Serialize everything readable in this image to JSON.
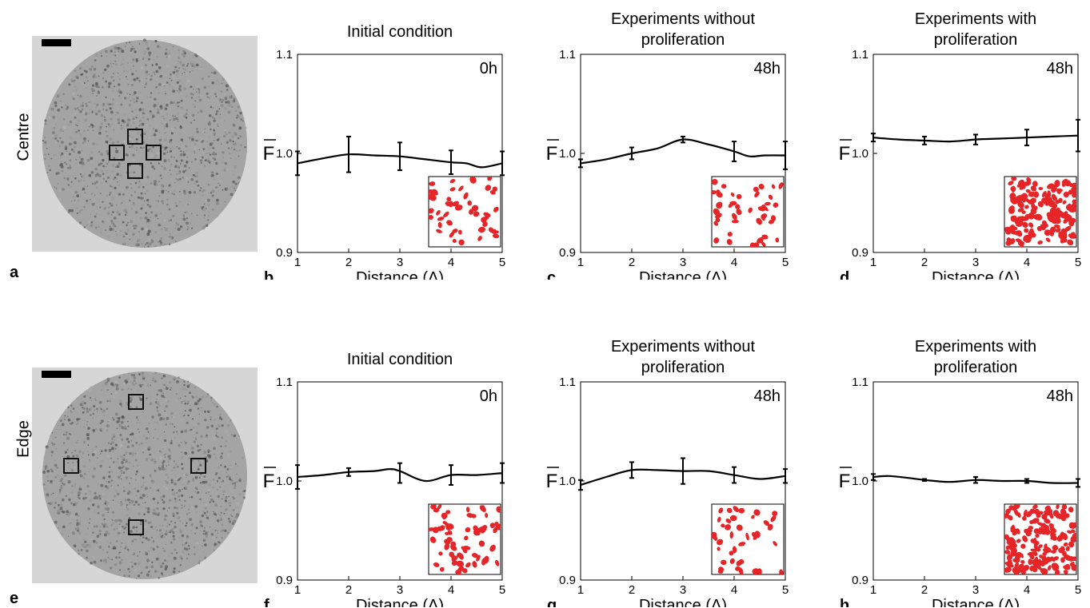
{
  "rows": [
    {
      "label": "Centre",
      "photo_letter": "a"
    },
    {
      "label": "Edge",
      "photo_letter": "e"
    }
  ],
  "axis_common": {
    "xlabel": "Distance (Δ)",
    "ylabel": "F"
  },
  "chart_data": [
    {
      "type": "line",
      "panel": "b",
      "title": "Initial condition",
      "time": "0h",
      "x": [
        1,
        2,
        3,
        4,
        5
      ],
      "y": [
        0.99,
        0.999,
        0.997,
        0.991,
        0.99
      ],
      "err": [
        0.012,
        0.018,
        0.014,
        0.012,
        0.012
      ],
      "curve": [
        [
          1,
          0.99
        ],
        [
          1.5,
          0.995
        ],
        [
          2,
          0.999
        ],
        [
          2.5,
          0.998
        ],
        [
          3,
          0.997
        ],
        [
          3.5,
          0.994
        ],
        [
          4,
          0.991
        ],
        [
          4.3,
          0.99
        ],
        [
          4.6,
          0.986
        ],
        [
          5,
          0.99
        ]
      ],
      "xlabel": "Distance (Δ)",
      "ylabel": "F",
      "xlim": [
        1,
        5
      ],
      "ylim": [
        0.9,
        1.1
      ],
      "xticks": [
        1,
        2,
        3,
        4,
        5
      ],
      "yticks": [
        0.9,
        1.0,
        1.1
      ]
    },
    {
      "type": "line",
      "panel": "c",
      "title": "Experiments without proliferation",
      "time": "48h",
      "x": [
        1,
        2,
        3,
        4,
        5
      ],
      "y": [
        0.99,
        1.0,
        1.014,
        1.002,
        0.998
      ],
      "err": [
        0.004,
        0.006,
        0.003,
        0.01,
        0.014
      ],
      "curve": [
        [
          1,
          0.99
        ],
        [
          1.5,
          0.994
        ],
        [
          2,
          1.0
        ],
        [
          2.5,
          1.005
        ],
        [
          3,
          1.014
        ],
        [
          3.5,
          1.009
        ],
        [
          4,
          1.002
        ],
        [
          4.3,
          0.997
        ],
        [
          4.6,
          0.998
        ],
        [
          5,
          0.998
        ]
      ],
      "xlabel": "Distance (Δ)",
      "ylabel": "F",
      "xlim": [
        1,
        5
      ],
      "ylim": [
        0.9,
        1.1
      ],
      "xticks": [
        1,
        2,
        3,
        4,
        5
      ],
      "yticks": [
        0.9,
        1.0,
        1.1
      ]
    },
    {
      "type": "line",
      "panel": "d",
      "title": "Experiments with proliferation",
      "time": "48h",
      "x": [
        1,
        2,
        3,
        4,
        5
      ],
      "y": [
        1.016,
        1.013,
        1.014,
        1.016,
        1.018
      ],
      "err": [
        0.004,
        0.004,
        0.005,
        0.008,
        0.016
      ],
      "curve": [
        [
          1,
          1.016
        ],
        [
          1.5,
          1.014
        ],
        [
          2,
          1.013
        ],
        [
          2.5,
          1.012
        ],
        [
          3,
          1.014
        ],
        [
          3.5,
          1.015
        ],
        [
          4,
          1.016
        ],
        [
          4.5,
          1.017
        ],
        [
          5,
          1.018
        ]
      ],
      "xlabel": "Distance (Δ)",
      "ylabel": "F",
      "xlim": [
        1,
        5
      ],
      "ylim": [
        0.9,
        1.1
      ],
      "xticks": [
        1,
        2,
        3,
        4,
        5
      ],
      "yticks": [
        0.9,
        1.0,
        1.1
      ]
    },
    {
      "type": "line",
      "panel": "f",
      "title": "Initial condition",
      "time": "0h",
      "x": [
        1,
        2,
        3,
        4,
        5
      ],
      "y": [
        1.004,
        1.009,
        1.008,
        1.006,
        1.008
      ],
      "err": [
        0.012,
        0.004,
        0.01,
        0.01,
        0.01
      ],
      "curve": [
        [
          1,
          1.004
        ],
        [
          1.5,
          1.006
        ],
        [
          2,
          1.009
        ],
        [
          2.5,
          1.01
        ],
        [
          2.8,
          1.012
        ],
        [
          3,
          1.01
        ],
        [
          3.5,
          1.0
        ],
        [
          4,
          1.006
        ],
        [
          4.5,
          1.006
        ],
        [
          5,
          1.008
        ]
      ],
      "xlabel": "Distance (Δ)",
      "ylabel": "F",
      "xlim": [
        1,
        5
      ],
      "ylim": [
        0.9,
        1.1
      ],
      "xticks": [
        1,
        2,
        3,
        4,
        5
      ],
      "yticks": [
        0.9,
        1.0,
        1.1
      ]
    },
    {
      "type": "line",
      "panel": "g",
      "title": "Experiments without proliferation",
      "time": "48h",
      "x": [
        1,
        2,
        3,
        4,
        5
      ],
      "y": [
        0.996,
        1.011,
        1.01,
        1.006,
        1.005
      ],
      "err": [
        0.005,
        0.008,
        0.013,
        0.008,
        0.007
      ],
      "curve": [
        [
          1,
          0.996
        ],
        [
          1.5,
          1.004
        ],
        [
          2,
          1.011
        ],
        [
          2.5,
          1.011
        ],
        [
          3,
          1.01
        ],
        [
          3.5,
          1.01
        ],
        [
          4,
          1.006
        ],
        [
          4.5,
          1.002
        ],
        [
          5,
          1.005
        ]
      ],
      "xlabel": "Distance (Δ)",
      "ylabel": "F",
      "xlim": [
        1,
        5
      ],
      "ylim": [
        0.9,
        1.1
      ],
      "xticks": [
        1,
        2,
        3,
        4,
        5
      ],
      "yticks": [
        0.9,
        1.0,
        1.1
      ]
    },
    {
      "type": "line",
      "panel": "h",
      "title": "Experiments with proliferation",
      "time": "48h",
      "x": [
        1,
        2,
        3,
        4,
        5
      ],
      "y": [
        1.004,
        1.001,
        1.001,
        1.0,
        0.998
      ],
      "err": [
        0.003,
        0.001,
        0.003,
        0.002,
        0.004
      ],
      "curve": [
        [
          1,
          1.004
        ],
        [
          1.3,
          1.005
        ],
        [
          1.7,
          1.003
        ],
        [
          2,
          1.001
        ],
        [
          2.5,
          0.999
        ],
        [
          3,
          1.001
        ],
        [
          3.5,
          1.0
        ],
        [
          4,
          1.0
        ],
        [
          4.5,
          0.998
        ],
        [
          5,
          0.998
        ]
      ],
      "xlabel": "Distance (Δ)",
      "ylabel": "F",
      "xlim": [
        1,
        5
      ],
      "ylim": [
        0.9,
        1.1
      ],
      "xticks": [
        1,
        2,
        3,
        4,
        5
      ],
      "yticks": [
        0.9,
        1.0,
        1.1
      ]
    }
  ],
  "colors": {
    "cells": "#e52528",
    "photo_bg": "#9a9a9a",
    "photo_outer": "#d6d6d6"
  }
}
